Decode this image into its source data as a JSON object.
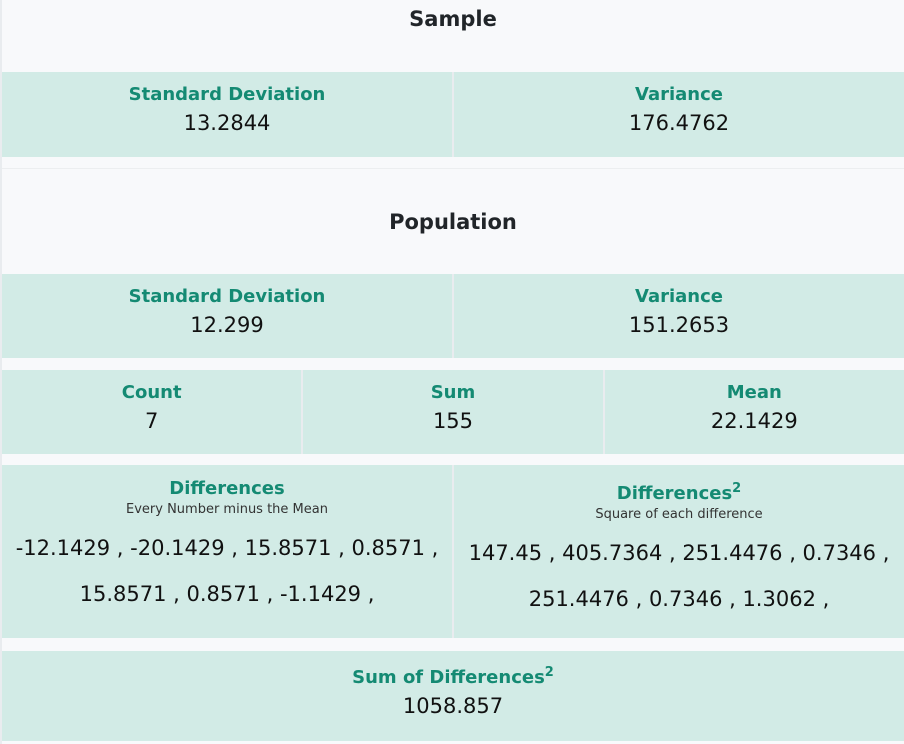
{
  "sample": {
    "title": "Sample",
    "std_label": "Standard Deviation",
    "std_value": "13.2844",
    "var_label": "Variance",
    "var_value": "176.4762"
  },
  "population": {
    "title": "Population",
    "std_label": "Standard Deviation",
    "std_value": "12.299",
    "var_label": "Variance",
    "var_value": "151.2653"
  },
  "summary": {
    "count_label": "Count",
    "count_value": "7",
    "sum_label": "Sum",
    "sum_value": "155",
    "mean_label": "Mean",
    "mean_value": "22.1429"
  },
  "differences": {
    "label": "Differences",
    "subtitle": "Every Number minus the Mean",
    "values": "-12.1429 , -20.1429 , 15.8571 , 0.8571 , 15.8571 , 0.8571 , -1.1429 ,"
  },
  "squared": {
    "label": "Differences",
    "sup": "2",
    "subtitle": "Square of each difference",
    "values": "147.45 , 405.7364 , 251.4476 , 0.7346 , 251.4476 , 0.7346 , 1.3062 ,"
  },
  "sum_squares": {
    "label": "Sum of Differences",
    "sup": "2",
    "value": "1058.857"
  },
  "colors": {
    "accent": "#148a73",
    "cell_bg": "#d2ebe6",
    "page_bg": "#f8f9fb"
  }
}
